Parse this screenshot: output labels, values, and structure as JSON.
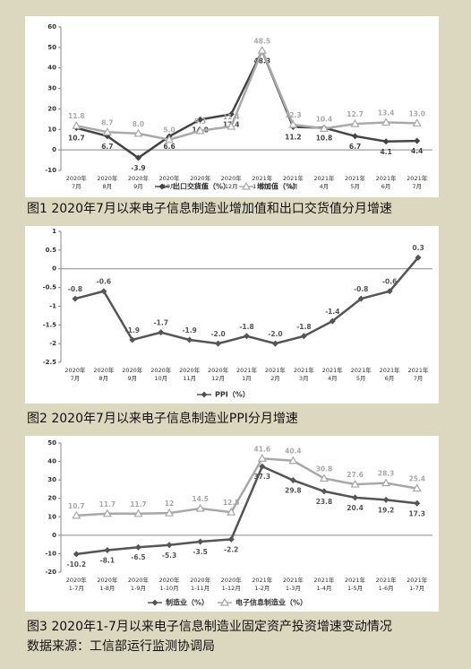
{
  "chart_data": [
    {
      "type": "line",
      "title": "图1 2020年7月以来电子信息制造业增加值和出口交货值分月增速",
      "categories": [
        "2020年\n7月",
        "2020年\n8月",
        "2020年\n9月",
        "2020年\n10月",
        "2020年\n11月",
        "2020年\n12月",
        "2021年\n1－2月",
        "2021年\n3月",
        "2021年\n4月",
        "2021年\n5月",
        "2021年\n6月",
        "2021年\n7月"
      ],
      "series": [
        {
          "name": "出口交货值（%）",
          "color": "#444444",
          "marker": "diamond",
          "values": [
            10.7,
            6.7,
            -3.9,
            6.6,
            14.8,
            17.4,
            48.3,
            11.2,
            10.8,
            6.7,
            4.1,
            4.4
          ]
        },
        {
          "name": "增加值（%）",
          "color": "#aaaaaa",
          "marker": "triangle",
          "values": [
            11.8,
            8.7,
            8.0,
            5.0,
            9.3,
            11.4,
            48.5,
            12.3,
            10.4,
            12.7,
            13.4,
            13.0
          ],
          "value_labels": [
            "11.8",
            "8.7",
            "8.0",
            "5.0",
            "9.3",
            "11.4",
            "48.5",
            "12.3",
            "10.4",
            "12.7",
            "13.4",
            "13.0"
          ]
        }
      ],
      "ylim": [
        -10,
        60
      ],
      "yticks": [
        -10,
        0,
        10,
        20,
        30,
        40,
        50,
        60
      ]
    },
    {
      "type": "line",
      "title": "图2 2020年7月以来电子信息制造业PPI分月增速",
      "categories": [
        "2020年\n7月",
        "2020年\n8月",
        "2020年\n9月",
        "2020年\n10月",
        "2020年\n11月",
        "2020年\n12月",
        "2021年\n1月",
        "2021年\n2月",
        "2021年\n3月",
        "2021年\n4月",
        "2021年\n5月",
        "2021年\n6月",
        "2021年\n7月"
      ],
      "series": [
        {
          "name": "PPI（%）",
          "color": "#555555",
          "marker": "diamond",
          "values": [
            -0.8,
            -0.6,
            -1.9,
            -1.7,
            -1.9,
            -2.0,
            -1.8,
            -2.0,
            -1.8,
            -1.4,
            -0.8,
            -0.6,
            0.3
          ],
          "value_labels": [
            "-0.8",
            "-0.6",
            "-1.9",
            "-1.7",
            "-1.9",
            "-2.0",
            "-1.8",
            "-2.0",
            "-1.8",
            "-1.4",
            "-0.8",
            "-0.6",
            "0.3"
          ]
        }
      ],
      "ylim": [
        -2.5,
        1
      ],
      "yticks": [
        -2.5,
        -2,
        -1.5,
        -1,
        -0.5,
        0,
        0.5,
        1
      ]
    },
    {
      "type": "line",
      "title": "图3 2020年1-7月以来电子信息制造业固定资产投资增速变动情况",
      "categories": [
        "2020年\n1-7月",
        "2020年\n1-8月",
        "2020年\n1-9月",
        "2020年\n1-10月",
        "2020年\n1-11月",
        "2020年\n1-12月",
        "2021年\n1-2月",
        "2021年\n1-3月",
        "2021年\n1-4月",
        "2021年\n1-5月",
        "2021年\n1-6月",
        "2021年\n1-7月"
      ],
      "series": [
        {
          "name": "制造业（%）",
          "color": "#555555",
          "marker": "diamond",
          "values": [
            -10.2,
            -8.1,
            -6.5,
            -5.3,
            -3.5,
            -2.2,
            37.3,
            29.8,
            23.8,
            20.4,
            19.2,
            17.3
          ]
        },
        {
          "name": "电子信息制造业（%）",
          "color": "#a8a8a8",
          "marker": "triangle",
          "values": [
            10.7,
            11.7,
            11.7,
            12.0,
            14.5,
            12.5,
            41.6,
            40.4,
            30.8,
            27.6,
            28.3,
            25.4
          ]
        }
      ],
      "ylim": [
        -20,
        50
      ],
      "yticks": [
        -20,
        -10,
        0,
        10,
        20,
        30,
        40,
        50
      ]
    }
  ],
  "source": "数据来源：工信部运行监测协调局"
}
